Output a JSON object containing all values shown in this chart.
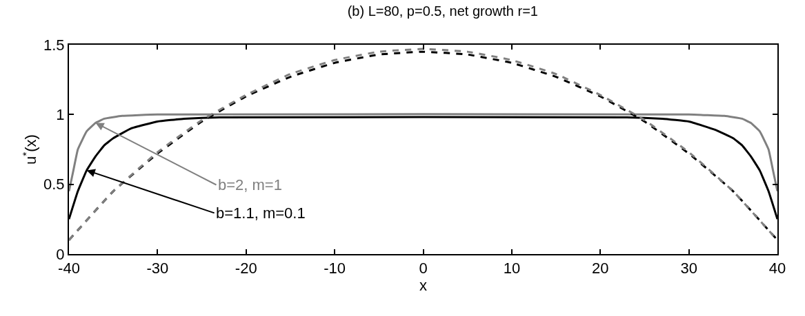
{
  "chart_data": {
    "type": "line",
    "title": "(b) L=80, p=0.5, net growth r=1",
    "xlabel": "x",
    "ylabel": "u$^{*}$(x)",
    "xlim": [
      -40,
      40
    ],
    "ylim": [
      0,
      1.5
    ],
    "xticks": [
      -40,
      -30,
      -20,
      -10,
      0,
      10,
      20,
      30,
      40
    ],
    "yticks": [
      0,
      0.5,
      1,
      1.5
    ],
    "marker": "none",
    "series": [
      {
        "color": "#000000",
        "line_style": "solid",
        "x": [
          -40,
          -39,
          -38,
          -37,
          -36,
          -35,
          -33,
          -30,
          -27,
          -23,
          23,
          27,
          30,
          33,
          35,
          36,
          37,
          38,
          39,
          40
        ],
        "values": [
          0.25,
          0.45,
          0.6,
          0.7,
          0.78,
          0.83,
          0.9,
          0.95,
          0.97,
          0.98,
          0.98,
          0.97,
          0.95,
          0.89,
          0.83,
          0.78,
          0.7,
          0.6,
          0.45,
          0.25
        ]
      },
      {
        "color": "#808080",
        "line_style": "solid",
        "x": [
          -40,
          -39.5,
          -39,
          -38,
          -37,
          -36,
          -34,
          -30,
          30,
          34,
          36,
          37,
          38,
          39,
          39.5,
          40
        ],
        "values": [
          0.45,
          0.6,
          0.75,
          0.88,
          0.94,
          0.97,
          0.99,
          1.0,
          1.0,
          0.99,
          0.97,
          0.94,
          0.88,
          0.75,
          0.6,
          0.45
        ]
      },
      {
        "color": "#000000",
        "line_style": "dashed",
        "x": [
          -40,
          -35,
          -30,
          -25,
          -20,
          -15,
          -10,
          -5,
          0,
          5,
          10,
          15,
          20,
          25,
          30,
          35,
          40
        ],
        "values": [
          0.1,
          0.45,
          0.72,
          0.95,
          1.13,
          1.27,
          1.37,
          1.43,
          1.45,
          1.43,
          1.37,
          1.27,
          1.13,
          0.95,
          0.72,
          0.45,
          0.1
        ]
      },
      {
        "color": "#808080",
        "line_style": "dashed",
        "x": [
          -40,
          -35,
          -30,
          -25,
          -20,
          -15,
          -10,
          -5,
          0,
          5,
          10,
          15,
          20,
          25,
          30,
          35,
          40
        ],
        "values": [
          0.1,
          0.45,
          0.73,
          0.96,
          1.14,
          1.29,
          1.39,
          1.45,
          1.47,
          1.45,
          1.39,
          1.29,
          1.14,
          0.96,
          0.73,
          0.45,
          0.1
        ]
      }
    ],
    "annotations": [
      {
        "text": "b=2, m=1",
        "x": -37,
        "y": 0.94
      },
      {
        "text": "b=1.1, m=0.1",
        "x": -38,
        "y": 0.6
      }
    ]
  }
}
